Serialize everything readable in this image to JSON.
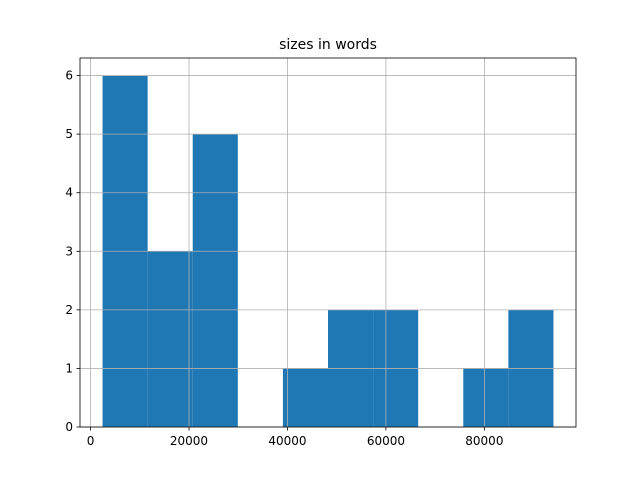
{
  "chart_data": {
    "type": "histogram",
    "title": "sizes in words",
    "bins": [
      2440,
      11599,
      20758,
      29917,
      39076,
      48235,
      57394,
      66553,
      75712,
      84871,
      94030
    ],
    "values": [
      6,
      3,
      5,
      0,
      1,
      2,
      2,
      0,
      1,
      2
    ],
    "color": "#1f77b4",
    "xlim": [
      -2140,
      98610
    ],
    "xticks": [
      0,
      20000,
      40000,
      60000,
      80000
    ],
    "ylim": [
      0,
      6.3
    ],
    "yticks": [
      0,
      1,
      2,
      3,
      4,
      5,
      6
    ],
    "grid": true
  }
}
